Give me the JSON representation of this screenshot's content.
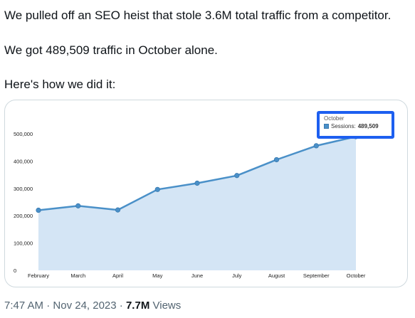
{
  "tweet": {
    "line1": "We pulled off an SEO heist that stole 3.6M total traffic from a competitor.",
    "line2": "We got 489,509 traffic in October alone.",
    "line3": "Here's how we did it:",
    "time": "7:47 AM",
    "sep1": "·",
    "date": "Nov 24, 2023",
    "sep2": "·",
    "views_count": "7.7M",
    "views_label": "Views"
  },
  "tooltip": {
    "month": "October",
    "series": "Sessions:",
    "value": "489,509"
  },
  "colors": {
    "line": "#4a90c8",
    "fill": "#d4e5f5",
    "tooltip_border": "#1d5ff0"
  },
  "chart_data": {
    "type": "area",
    "categories": [
      "February",
      "March",
      "April",
      "May",
      "June",
      "July",
      "August",
      "September",
      "October"
    ],
    "series": [
      {
        "name": "Sessions",
        "values": [
          220000,
          236000,
          221000,
          296000,
          319000,
          347000,
          405000,
          456000,
          489509
        ]
      }
    ],
    "ytick_labels": [
      "0",
      "100,000",
      "200,000",
      "300,000",
      "400,000",
      "500,000"
    ],
    "yticks": [
      0,
      100000,
      200000,
      300000,
      400000,
      500000
    ],
    "ylim": [
      0,
      500000
    ],
    "grid": false,
    "legend": "none"
  }
}
